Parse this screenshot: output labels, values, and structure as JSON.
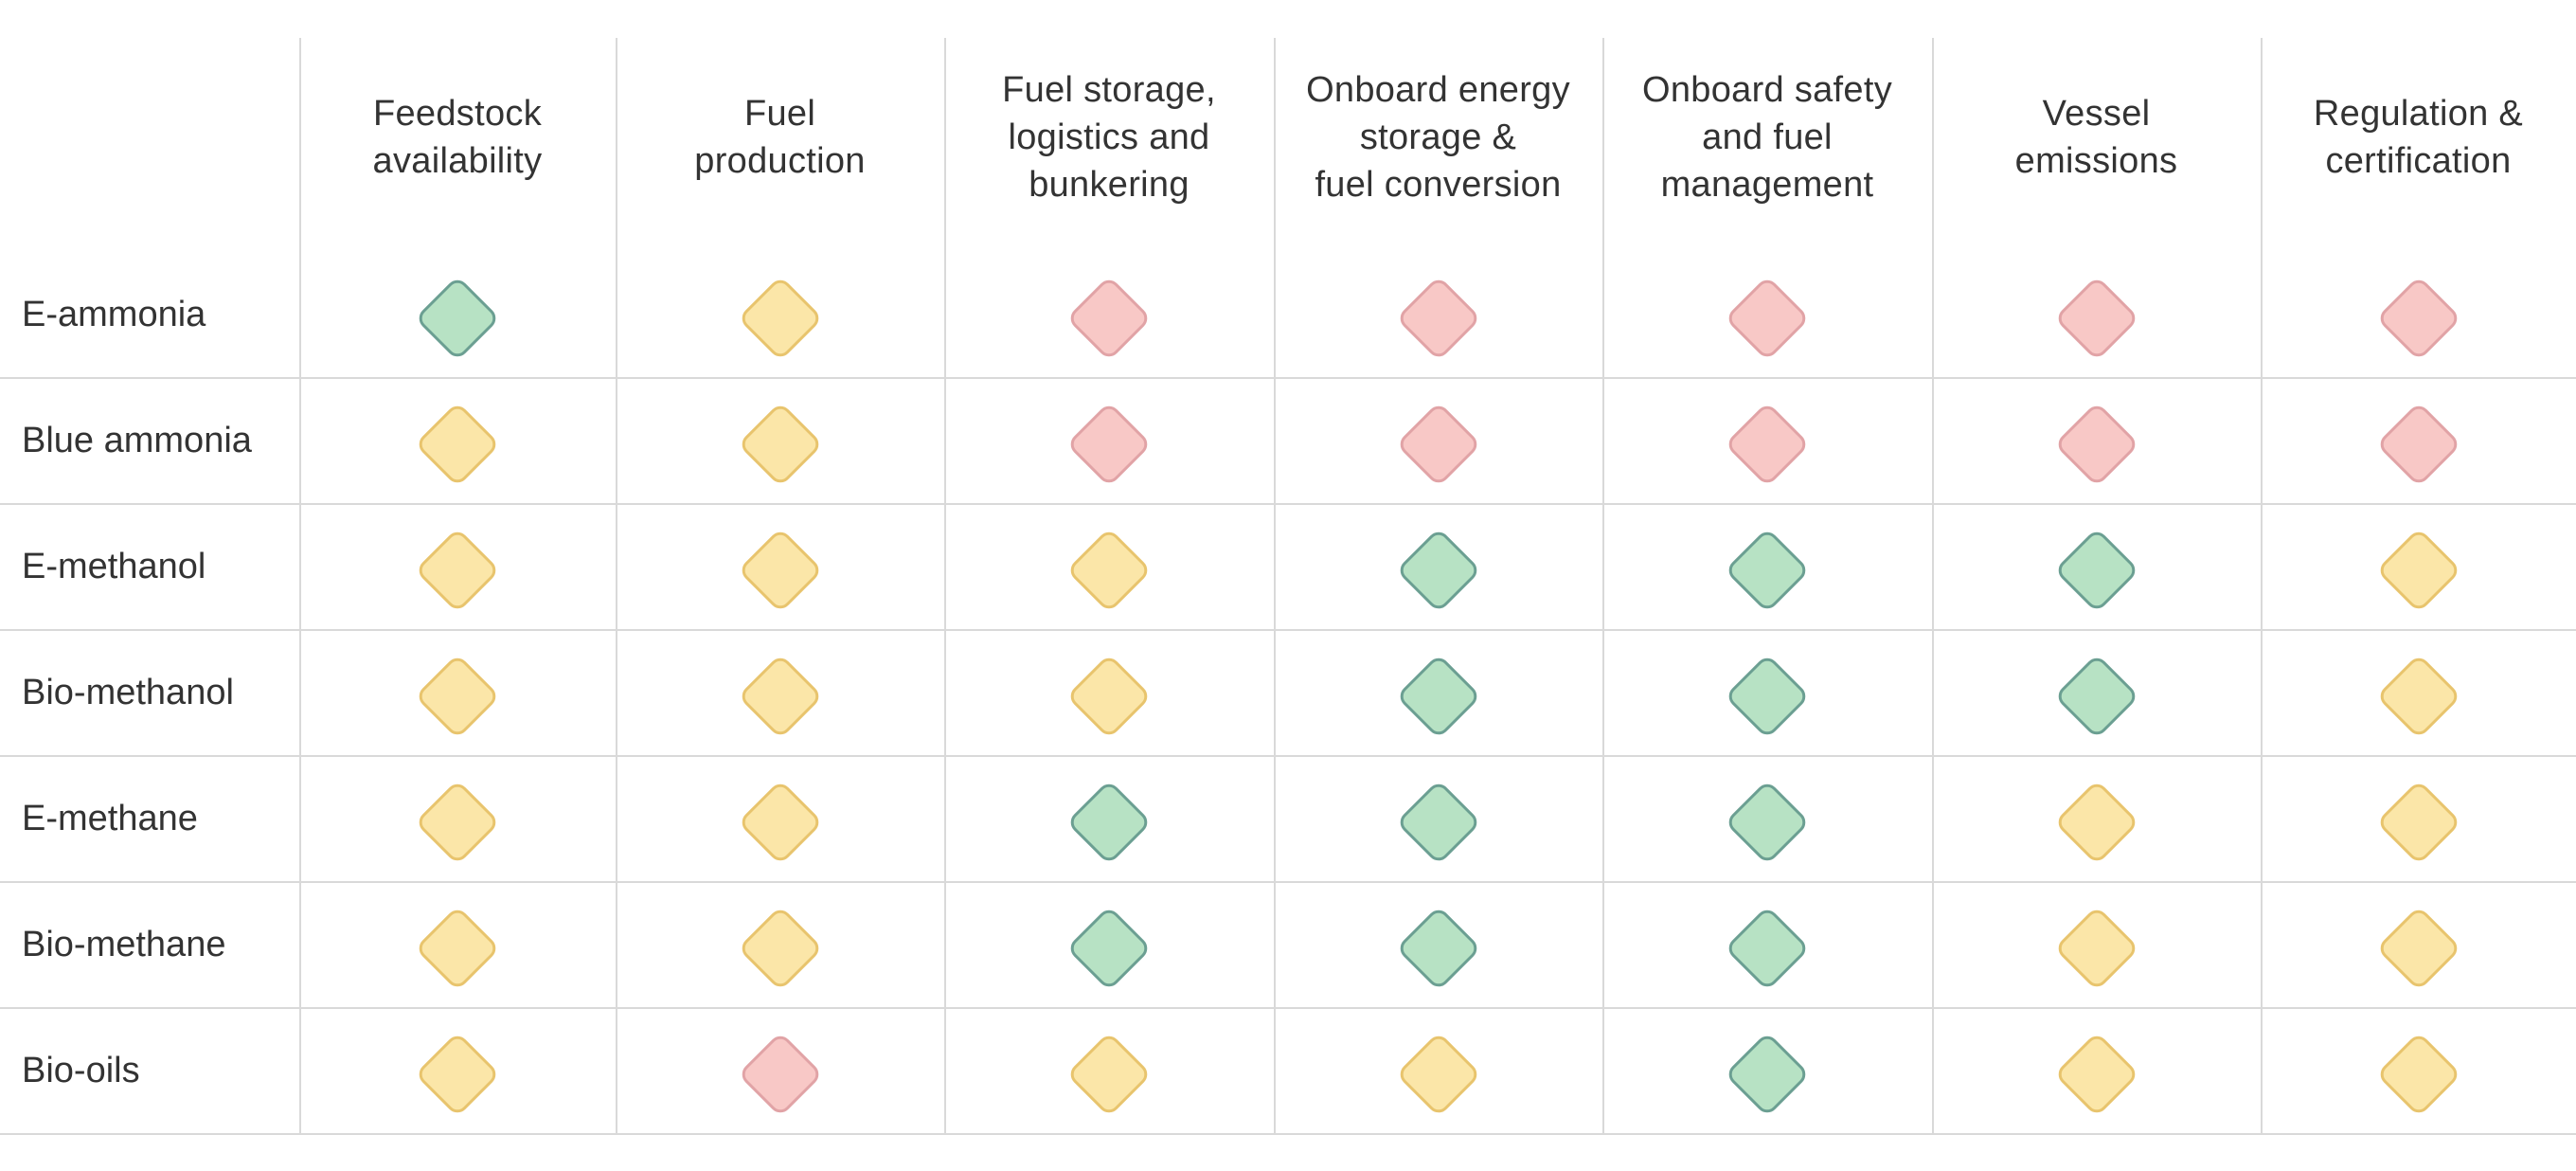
{
  "matrix": {
    "columns": [
      "Feedstock\navailability",
      "Fuel\nproduction",
      "Fuel storage,\nlogistics and\nbunkering",
      "Onboard energy\nstorage &\nfuel conversion",
      "Onboard safety\nand fuel\nmanagement",
      "Vessel\nemissions",
      "Regulation &\ncertification"
    ],
    "rows": [
      {
        "label": "E-ammonia",
        "ratings": [
          "green",
          "yellow",
          "red",
          "red",
          "red",
          "red",
          "red"
        ]
      },
      {
        "label": "Blue ammonia",
        "ratings": [
          "yellow",
          "yellow",
          "red",
          "red",
          "red",
          "red",
          "red"
        ]
      },
      {
        "label": "E-methanol",
        "ratings": [
          "yellow",
          "yellow",
          "yellow",
          "green",
          "green",
          "green",
          "yellow"
        ]
      },
      {
        "label": "Bio-methanol",
        "ratings": [
          "yellow",
          "yellow",
          "yellow",
          "green",
          "green",
          "green",
          "yellow"
        ]
      },
      {
        "label": "E-methane",
        "ratings": [
          "yellow",
          "yellow",
          "green",
          "green",
          "green",
          "yellow",
          "yellow"
        ]
      },
      {
        "label": "Bio-methane",
        "ratings": [
          "yellow",
          "yellow",
          "green",
          "green",
          "green",
          "yellow",
          "yellow"
        ]
      },
      {
        "label": "Bio-oils",
        "ratings": [
          "yellow",
          "red",
          "yellow",
          "yellow",
          "green",
          "yellow",
          "yellow"
        ]
      }
    ],
    "rating_colors": {
      "green": {
        "fill": "#b7e2c4",
        "stroke": "#6b9f92"
      },
      "yellow": {
        "fill": "#fbe6a8",
        "stroke": "#e8c46d"
      },
      "red": {
        "fill": "#f8c8c6",
        "stroke": "#e1a3a6"
      }
    }
  }
}
